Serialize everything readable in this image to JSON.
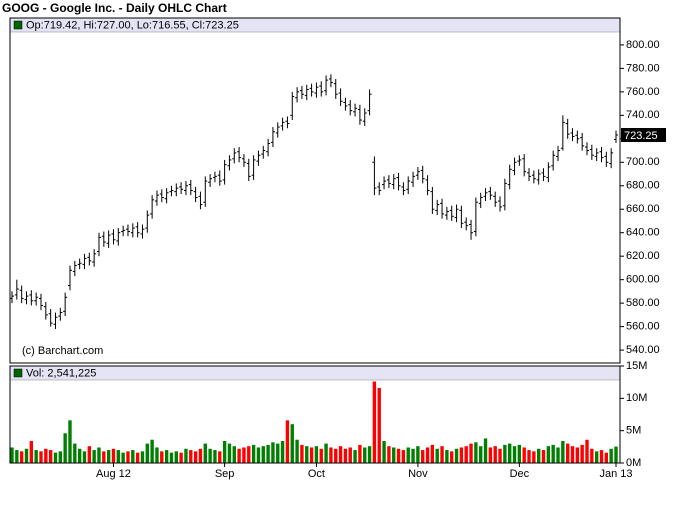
{
  "chart_data": [
    {
      "type": "ohlc",
      "title": "GOOG - Google Inc. - Daily OHLC Chart",
      "info": "Op:719.42, Hi:727.00, Lo:716.55, Cl:723.25",
      "annotation": "(c) Barchart.com",
      "color": "#000000",
      "header_color": "#e4e4f4",
      "marker_color": "#006400",
      "categories": [
        null,
        null,
        null,
        null,
        null,
        null,
        null,
        null,
        null,
        null,
        null,
        null,
        null,
        null,
        null,
        null,
        null,
        null,
        null,
        null,
        null,
        "Aug 12",
        null,
        null,
        null,
        null,
        null,
        null,
        null,
        null,
        null,
        null,
        null,
        null,
        null,
        null,
        null,
        null,
        null,
        null,
        null,
        null,
        null,
        null,
        "Sep",
        null,
        null,
        null,
        null,
        null,
        null,
        null,
        null,
        null,
        null,
        null,
        null,
        null,
        null,
        null,
        null,
        null,
        null,
        "Oct",
        null,
        null,
        null,
        null,
        null,
        null,
        null,
        null,
        null,
        null,
        null,
        null,
        null,
        null,
        null,
        null,
        null,
        null,
        null,
        null,
        "Nov",
        null,
        null,
        null,
        null,
        null,
        null,
        null,
        null,
        null,
        null,
        null,
        null,
        null,
        null,
        null,
        null,
        null,
        null,
        null,
        null,
        "Dec",
        null,
        null,
        null,
        null,
        null,
        null,
        null,
        null,
        null,
        null,
        null,
        null,
        null,
        null,
        null,
        null,
        null,
        null,
        null,
        "Jan 13"
      ],
      "open": [
        584,
        587,
        591,
        583,
        587,
        582,
        584,
        577,
        571,
        562,
        569,
        573,
        595,
        607,
        613,
        613,
        619,
        615,
        624,
        637,
        631,
        639,
        633,
        641,
        643,
        640,
        645,
        639,
        644,
        656,
        667,
        673,
        669,
        675,
        675,
        679,
        676,
        681,
        675,
        671,
        666,
        683,
        687,
        689,
        685,
        697,
        703,
        709,
        703,
        699,
        689,
        701,
        707,
        709,
        717,
        725,
        731,
        735,
        740,
        755,
        761,
        757,
        763,
        759,
        765,
        761,
        771,
        767,
        759,
        751,
        749,
        743,
        745,
        735,
        744,
        700,
        679,
        681,
        685,
        681,
        687,
        679,
        677,
        683,
        689,
        693,
        685,
        675,
        659,
        665,
        655,
        659,
        653,
        659,
        649,
        647,
        641,
        665,
        671,
        675,
        671,
        667,
        663,
        681,
        693,
        701,
        703,
        691,
        689,
        685,
        691,
        687,
        697,
        705,
        712,
        733,
        725,
        723,
        721,
        713,
        711,
        705,
        709,
        705,
        699,
        719.42
      ],
      "high": [
        590,
        600,
        595,
        590,
        591,
        589,
        588,
        581,
        575,
        572,
        576,
        589,
        612,
        616,
        618,
        622,
        623,
        626,
        640,
        641,
        642,
        643,
        644,
        646,
        647,
        648,
        649,
        647,
        659,
        672,
        676,
        677,
        678,
        680,
        682,
        683,
        684,
        685,
        679,
        675,
        688,
        690,
        692,
        693,
        702,
        706,
        712,
        713,
        707,
        703,
        706,
        710,
        714,
        720,
        730,
        734,
        738,
        739,
        760,
        764,
        765,
        766,
        767,
        768,
        769,
        774,
        775,
        771,
        763,
        755,
        753,
        750,
        749,
        746,
        762,
        705,
        683,
        688,
        689,
        690,
        691,
        683,
        688,
        692,
        696,
        697,
        689,
        679,
        668,
        669,
        662,
        663,
        664,
        663,
        653,
        651,
        670,
        674,
        678,
        679,
        675,
        671,
        686,
        698,
        704,
        706,
        707,
        695,
        693,
        694,
        695,
        700,
        710,
        714,
        740,
        737,
        729,
        727,
        725,
        717,
        715,
        712,
        713,
        709,
        712,
        727
      ],
      "low": [
        580,
        583,
        580,
        579,
        578,
        578,
        574,
        566,
        560,
        558,
        565,
        569,
        591,
        603,
        609,
        609,
        612,
        611,
        620,
        628,
        627,
        630,
        629,
        637,
        637,
        636,
        636,
        635,
        640,
        652,
        663,
        666,
        665,
        671,
        671,
        673,
        672,
        672,
        666,
        660,
        662,
        679,
        683,
        680,
        681,
        693,
        699,
        700,
        696,
        684,
        685,
        697,
        703,
        705,
        713,
        721,
        727,
        729,
        736,
        751,
        754,
        753,
        756,
        755,
        756,
        757,
        764,
        754,
        748,
        744,
        740,
        739,
        732,
        731,
        740,
        672,
        672,
        677,
        678,
        677,
        676,
        672,
        673,
        679,
        685,
        682,
        672,
        656,
        655,
        652,
        651,
        650,
        649,
        644,
        642,
        634,
        637,
        661,
        667,
        668,
        662,
        658,
        659,
        677,
        689,
        697,
        688,
        684,
        682,
        681,
        684,
        683,
        693,
        701,
        710,
        720,
        718,
        716,
        710,
        706,
        702,
        701,
        700,
        696,
        695,
        716.55
      ],
      "close": [
        586,
        592,
        584,
        586,
        582,
        585,
        578,
        570,
        563,
        568,
        572,
        585,
        608,
        612,
        614,
        618,
        616,
        622,
        636,
        632,
        638,
        634,
        640,
        642,
        641,
        644,
        640,
        643,
        655,
        668,
        672,
        670,
        674,
        676,
        678,
        677,
        680,
        676,
        670,
        664,
        684,
        686,
        688,
        684,
        698,
        702,
        708,
        704,
        700,
        688,
        702,
        706,
        710,
        716,
        726,
        730,
        734,
        733,
        756,
        760,
        758,
        762,
        760,
        764,
        760,
        770,
        768,
        758,
        752,
        748,
        744,
        746,
        736,
        742,
        758,
        678,
        676,
        684,
        682,
        686,
        680,
        676,
        684,
        688,
        692,
        686,
        676,
        660,
        664,
        656,
        658,
        654,
        660,
        648,
        646,
        640,
        666,
        670,
        674,
        672,
        666,
        662,
        682,
        694,
        700,
        702,
        692,
        688,
        686,
        690,
        688,
        696,
        706,
        710,
        734,
        724,
        722,
        720,
        714,
        710,
        706,
        708,
        704,
        700,
        708,
        723.25
      ],
      "ylim": [
        529,
        811
      ],
      "yticks": [
        {
          "value": 540,
          "label": "540.00"
        },
        {
          "value": 560,
          "label": "560.00"
        },
        {
          "value": 580,
          "label": "580.00"
        },
        {
          "value": 600,
          "label": "600.00"
        },
        {
          "value": 620,
          "label": "620.00"
        },
        {
          "value": 640,
          "label": "640.00"
        },
        {
          "value": 660,
          "label": "660.00"
        },
        {
          "value": 680,
          "label": "680.00"
        },
        {
          "value": 700,
          "label": "700.00"
        },
        {
          "value": 720,
          "label": "720.00"
        },
        {
          "value": 740,
          "label": "740.00"
        },
        {
          "value": 760,
          "label": "760.00"
        },
        {
          "value": 780,
          "label": "780.00"
        },
        {
          "value": 800,
          "label": "800.00"
        }
      ],
      "grid": false
    },
    {
      "type": "bar",
      "info": "Vol: 2,541,225",
      "up_color": "#008000",
      "down_color": "#ff0000",
      "values": [
        2.4,
        2.0,
        1.8,
        2.2,
        3.4,
        2.0,
        1.8,
        2.2,
        2.0,
        1.6,
        1.8,
        4.6,
        6.6,
        3.0,
        2.2,
        1.8,
        2.6,
        2.0,
        2.4,
        1.8,
        2.0,
        2.2,
        2.0,
        1.6,
        1.8,
        2.0,
        1.6,
        1.8,
        3.0,
        3.6,
        2.4,
        1.8,
        2.0,
        1.6,
        1.8,
        1.6,
        2.2,
        2.0,
        1.8,
        2.2,
        3.0,
        2.2,
        2.0,
        1.8,
        3.4,
        3.0,
        2.6,
        2.2,
        2.4,
        2.6,
        2.8,
        2.4,
        2.6,
        2.8,
        3.2,
        3.0,
        3.4,
        6.6,
        6.0,
        3.6,
        2.8,
        2.6,
        2.4,
        2.6,
        2.2,
        3.0,
        2.4,
        2.2,
        2.6,
        2.2,
        2.4,
        2.0,
        2.8,
        2.4,
        2.6,
        12.6,
        11.6,
        3.4,
        2.6,
        2.4,
        2.2,
        2.0,
        2.4,
        2.2,
        2.6,
        2.0,
        2.4,
        2.8,
        2.2,
        2.6,
        2.0,
        1.8,
        2.2,
        2.4,
        2.6,
        3.0,
        3.2,
        2.6,
        3.8,
        2.4,
        2.6,
        2.2,
        2.8,
        3.0,
        2.6,
        2.8,
        2.4,
        2.0,
        1.8,
        2.2,
        2.0,
        2.6,
        2.8,
        2.4,
        3.4,
        3.0,
        2.6,
        2.4,
        2.8,
        3.6,
        2.2,
        1.8,
        2.0,
        1.6,
        2.2,
        2.541225
      ],
      "ylim": [
        0,
        15
      ],
      "yticks": [
        {
          "value": 0,
          "label": "0M"
        },
        {
          "value": 5,
          "label": "5M"
        },
        {
          "value": 10,
          "label": "10M"
        },
        {
          "value": 15,
          "label": "15M"
        }
      ],
      "grid": false
    }
  ]
}
